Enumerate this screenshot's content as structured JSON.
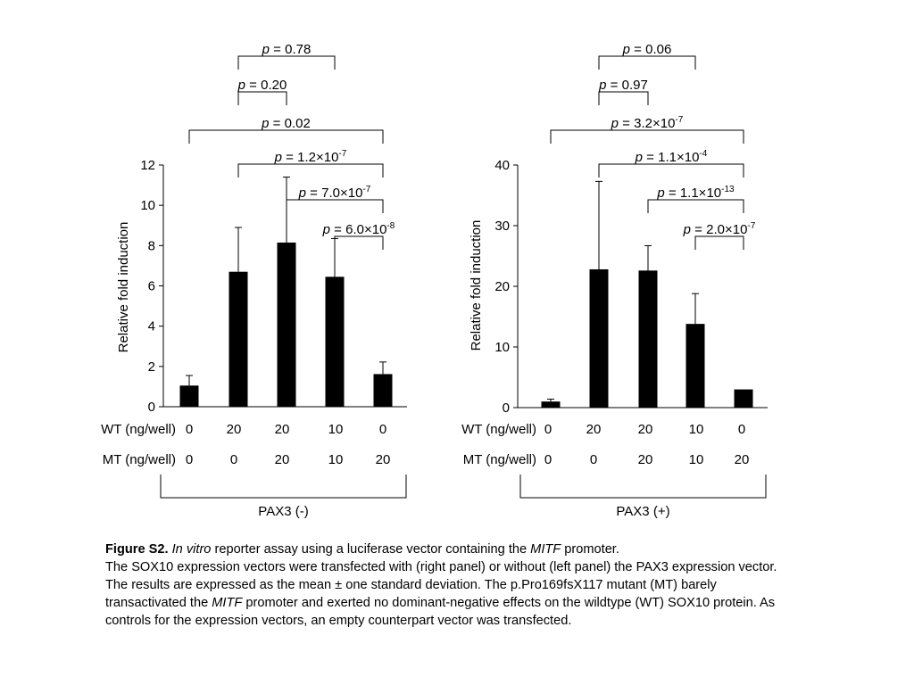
{
  "chart_data": [
    {
      "type": "bar",
      "panel_label": "PAX3 (-)",
      "ylabel": "Relative fold induction",
      "ylim": [
        0,
        12
      ],
      "yticks": [
        0,
        2,
        4,
        6,
        8,
        10,
        12
      ],
      "row_labels": [
        "WT (ng/well)",
        "MT (ng/well)"
      ],
      "wt": [
        "0",
        "20",
        "20",
        "10",
        "0"
      ],
      "mt": [
        "0",
        "0",
        "20",
        "10",
        "20"
      ],
      "values": [
        1.05,
        6.7,
        8.15,
        6.45,
        1.62
      ],
      "errors": [
        0.5,
        2.2,
        3.25,
        1.9,
        0.6
      ],
      "comparisons": [
        {
          "from": 1,
          "to": 3,
          "label": "= 0.78"
        },
        {
          "from": 1,
          "to": 2,
          "label": "= 0.20"
        },
        {
          "from": 0,
          "to": 4,
          "label": "= 0.02"
        },
        {
          "from": 1,
          "to": 4,
          "label": "= 1.2×10",
          "exp": "-7"
        },
        {
          "from": 2,
          "to": 4,
          "label": "= 7.0×10",
          "exp": "-7"
        },
        {
          "from": 3,
          "to": 4,
          "label": "= 6.0×10",
          "exp": "-8"
        }
      ]
    },
    {
      "type": "bar",
      "panel_label": "PAX3 (+)",
      "ylabel": "Relative fold induction",
      "ylim": [
        0,
        40
      ],
      "yticks": [
        0,
        10,
        20,
        30,
        40
      ],
      "row_labels": [
        "WT (ng/well)",
        "MT (ng/well)"
      ],
      "wt": [
        "0",
        "20",
        "20",
        "10",
        "0"
      ],
      "mt": [
        "0",
        "0",
        "20",
        "10",
        "20"
      ],
      "values": [
        1.0,
        22.8,
        22.6,
        13.8,
        3.0
      ],
      "errors": [
        0.4,
        14.5,
        4.1,
        5.0,
        0.0
      ],
      "comparisons": [
        {
          "from": 1,
          "to": 3,
          "label": "= 0.06"
        },
        {
          "from": 1,
          "to": 2,
          "label": "= 0.97"
        },
        {
          "from": 0,
          "to": 4,
          "label": "= 3.2×10",
          "exp": "-7"
        },
        {
          "from": 1,
          "to": 4,
          "label": "= 1.1×10",
          "exp": "-4"
        },
        {
          "from": 2,
          "to": 4,
          "label": "= 1.1×10",
          "exp": "-13"
        },
        {
          "from": 3,
          "to": 4,
          "label": "= 2.0×10",
          "exp": "-7"
        }
      ]
    }
  ],
  "p_symbol": "p",
  "caption": {
    "title": "Figure S2.",
    "invitro": "In vitro",
    "text1": " reporter assay using a luciferase vector containing the ",
    "gene1": "MITF",
    "text2": " promoter.",
    "text3": "The SOX10 expression vectors were transfected with (right panel) or without (left panel) the PAX3 expression vector. The results are expressed as the mean ± one standard deviation. The p.Pro169fsX117 mutant (MT) barely transactivated the ",
    "gene2": "MITF",
    "text4": " promoter and exerted no dominant-negative effects on the wildtype (WT) SOX10 protein. As controls for the expression vectors, an empty counterpart vector was transfected."
  }
}
